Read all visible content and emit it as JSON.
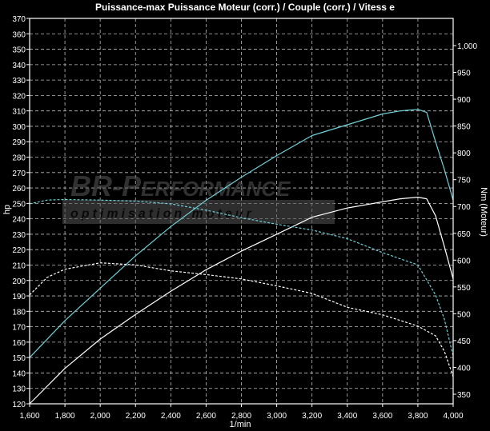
{
  "chart_data": {
    "type": "line",
    "title": "Puissance-max Puissance Moteur (corr.) / Couple (corr.) / Vitess e",
    "xlabel": "1/min",
    "ylabel_left": "hp",
    "ylabel_right": "Nm (Moteur)",
    "xlim": [
      1600,
      4000
    ],
    "ylim_left": [
      120,
      370
    ],
    "ylim_right": [
      350,
      1000
    ],
    "x_ticks": [
      "1,600",
      "1,800",
      "2,000",
      "2,200",
      "2,400",
      "2,600",
      "2,800",
      "3,000",
      "3,200",
      "3,400",
      "3,600",
      "3,800",
      "4,000"
    ],
    "y_left_ticks": [
      "120",
      "130",
      "140",
      "150",
      "160",
      "170",
      "180",
      "190",
      "200",
      "210",
      "220",
      "230",
      "240",
      "250",
      "260",
      "270",
      "280",
      "290",
      "300",
      "310",
      "320",
      "330",
      "340",
      "350",
      "360",
      "370"
    ],
    "y_right_ticks": [
      "350",
      "400",
      "450",
      "500",
      "550",
      "600",
      "650",
      "700",
      "750",
      "800",
      "850",
      "900",
      "950",
      "1,000"
    ],
    "grid": true,
    "series": [
      {
        "axis": "left",
        "style": "solid",
        "color": "#6fd0d8",
        "x": [
          1600,
          1800,
          2000,
          2200,
          2400,
          2600,
          2800,
          3000,
          3200,
          3400,
          3600,
          3700,
          3800,
          3850,
          3900,
          3950,
          4000
        ],
        "y": [
          150,
          174,
          195,
          216,
          235,
          252,
          267,
          281,
          294,
          301,
          308,
          310,
          311,
          309,
          290,
          272,
          252
        ]
      },
      {
        "axis": "left",
        "style": "solid",
        "color": "#ffffff",
        "x": [
          1600,
          1800,
          2000,
          2200,
          2400,
          2600,
          2800,
          3000,
          3200,
          3400,
          3600,
          3700,
          3800,
          3850,
          3900,
          3950,
          4000
        ],
        "y": [
          120,
          143,
          162,
          178,
          193,
          207,
          219,
          230,
          241,
          247,
          251,
          253,
          254,
          253,
          242,
          222,
          201
        ]
      },
      {
        "axis": "right",
        "style": "dashed",
        "color": "#6fd0d8",
        "x": [
          1600,
          1700,
          1800,
          2000,
          2200,
          2400,
          2600,
          2800,
          3000,
          3200,
          3400,
          3600,
          3800,
          3900,
          3950,
          4000
        ],
        "y": [
          705,
          712,
          713,
          712,
          710,
          705,
          693,
          679,
          667,
          656,
          640,
          614,
          591,
          535,
          490,
          421
        ]
      },
      {
        "axis": "right",
        "style": "dashed",
        "color": "#ffffff",
        "x": [
          1600,
          1700,
          1800,
          2000,
          2200,
          2400,
          2600,
          2800,
          3000,
          3200,
          3400,
          3600,
          3800,
          3900,
          3950,
          4000
        ],
        "y": [
          535,
          568,
          583,
          595,
          591,
          580,
          573,
          565,
          552,
          538,
          512,
          498,
          477,
          459,
          430,
          383
        ]
      }
    ]
  },
  "watermark": {
    "brand": "BR-Performance",
    "tagline": "optimisation moteur"
  }
}
